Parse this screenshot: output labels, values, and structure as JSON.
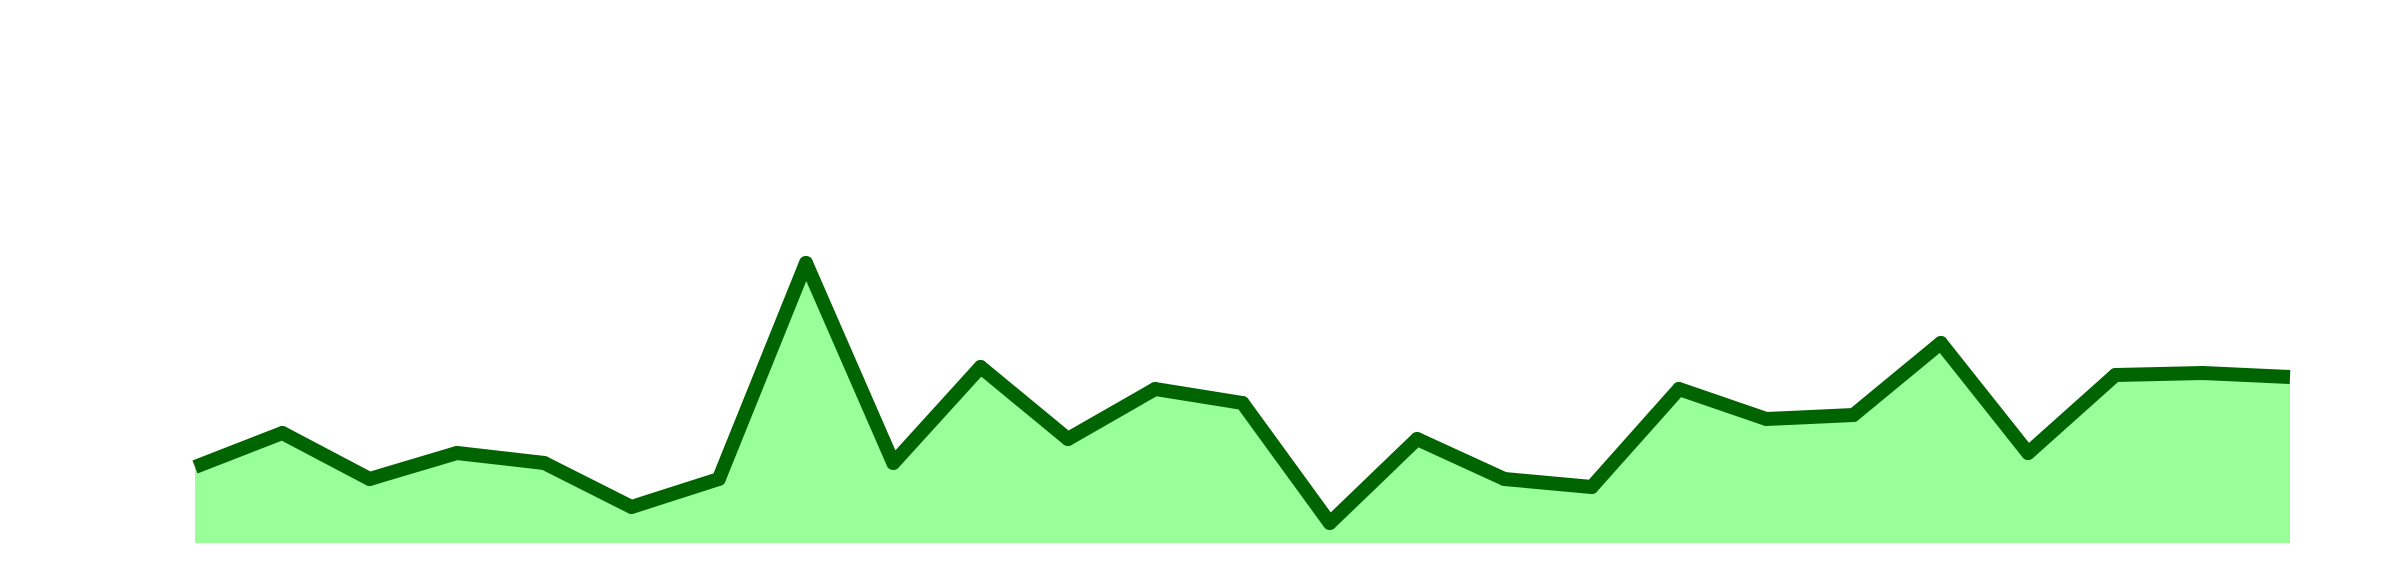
{
  "chart_data": {
    "type": "area",
    "title": "",
    "xlabel": "",
    "ylabel": "",
    "x": [
      1,
      2,
      3,
      4,
      5,
      6,
      7,
      8,
      9,
      10,
      11,
      12,
      13,
      14,
      15,
      16,
      17,
      18,
      19,
      20,
      21,
      22,
      23,
      24,
      25
    ],
    "series": [
      {
        "values": [
          38,
          55,
          32,
          45,
          40,
          18,
          32,
          140,
          40,
          88,
          52,
          77,
          70,
          10,
          52,
          32,
          28,
          77,
          62,
          64,
          100,
          45,
          84,
          85,
          83
        ]
      }
    ],
    "ylim": [
      0,
      250
    ],
    "grid": false,
    "legend": "none",
    "colors": {
      "fill": "#99ff99",
      "line": "#006400",
      "background": "#ffffff"
    }
  }
}
